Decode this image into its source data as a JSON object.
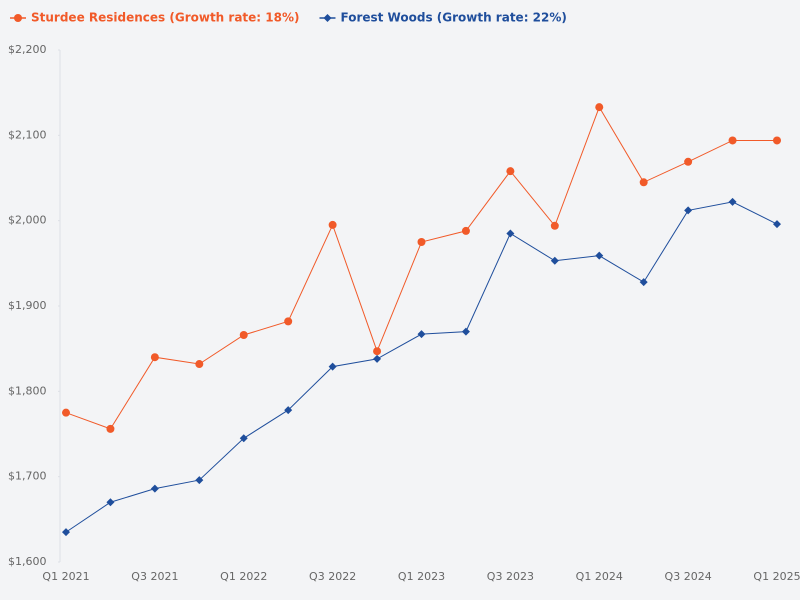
{
  "chart_data": {
    "type": "line",
    "categories": [
      "Q1 2021",
      null,
      "Q3 2021",
      null,
      "Q1 2022",
      null,
      "Q3 2022",
      null,
      "Q1 2023",
      null,
      "Q3 2023",
      null,
      "Q1 2024",
      null,
      "Q3 2024",
      null,
      "Q1 2025"
    ],
    "series": [
      {
        "name": "Sturdee Residences (Growth rate: 18%)",
        "color": "#f15a29",
        "marker": "circle",
        "values": [
          1775,
          1756,
          1840,
          1832,
          1866,
          1882,
          1995,
          1847,
          1975,
          1988,
          2058,
          1994,
          2133,
          2045,
          2069,
          2094,
          2094
        ]
      },
      {
        "name": "Forest Woods (Growth rate: 22%)",
        "color": "#1f4e9c",
        "marker": "diamond",
        "values": [
          1635,
          1670,
          1686,
          1696,
          1745,
          1778,
          1829,
          1838,
          1867,
          1870,
          1985,
          1953,
          1959,
          1928,
          2012,
          2022,
          1996
        ]
      }
    ],
    "ylim": [
      1600,
      2200
    ],
    "yticks": [
      {
        "value": 1600,
        "label": "$1,600"
      },
      {
        "value": 1700,
        "label": "$1,700"
      },
      {
        "value": 1800,
        "label": "$1,800"
      },
      {
        "value": 1900,
        "label": "$1,900"
      },
      {
        "value": 2000,
        "label": "$2,000"
      },
      {
        "value": 2100,
        "label": "$2,100"
      },
      {
        "value": 2200,
        "label": "$2,200"
      }
    ],
    "grid": false
  }
}
